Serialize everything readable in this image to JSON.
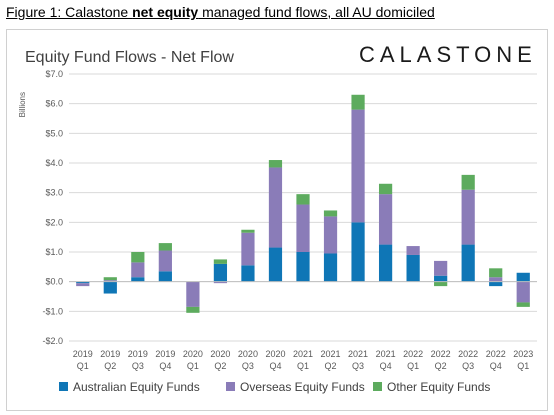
{
  "caption": {
    "prefix": "Figure 1: Calastone ",
    "bold": "net equity",
    "suffix": " managed fund flows, all AU domiciled"
  },
  "logo_text": "CALASTONE",
  "colors": {
    "australian": "#0f76b6",
    "overseas": "#8a7cb8",
    "other": "#5dab5e",
    "grid": "#d9d9d9"
  },
  "chart_data": {
    "type": "bar",
    "stacked": true,
    "title": "Equity Fund Flows - Net Flow",
    "ylabel": "Billions",
    "ylim": [
      -2.0,
      7.0
    ],
    "ytick_values": [
      7.0,
      6.0,
      5.0,
      4.0,
      3.0,
      2.0,
      1.0,
      0.0,
      -1.0,
      -2.0
    ],
    "ytick_labels": [
      "$7.0",
      "$6.0",
      "$5.0",
      "$4.0",
      "$3.0",
      "$2.0",
      "$1.0",
      "$0.0",
      "-$1.0",
      "-$2.0"
    ],
    "categories": [
      [
        "2019",
        "Q1"
      ],
      [
        "2019",
        "Q2"
      ],
      [
        "2019",
        "Q3"
      ],
      [
        "2019",
        "Q4"
      ],
      [
        "2020",
        "Q1"
      ],
      [
        "2020",
        "Q2"
      ],
      [
        "2020",
        "Q3"
      ],
      [
        "2020",
        "Q4"
      ],
      [
        "2021",
        "Q1"
      ],
      [
        "2021",
        "Q2"
      ],
      [
        "2021",
        "Q3"
      ],
      [
        "2021",
        "Q4"
      ],
      [
        "2022",
        "Q1"
      ],
      [
        "2022",
        "Q2"
      ],
      [
        "2022",
        "Q3"
      ],
      [
        "2022",
        "Q4"
      ],
      [
        "2023",
        "Q1"
      ]
    ],
    "series": [
      {
        "name": "Australian Equity Funds",
        "color": "#0f76b6",
        "values": [
          -0.05,
          -0.4,
          0.15,
          0.35,
          0.0,
          0.6,
          0.55,
          1.15,
          1.0,
          0.95,
          2.0,
          1.25,
          0.9,
          0.2,
          1.25,
          -0.15,
          0.3
        ]
      },
      {
        "name": "Overseas Equity Funds",
        "color": "#8a7cb8",
        "values": [
          -0.1,
          0.05,
          0.5,
          0.7,
          -0.85,
          -0.05,
          1.1,
          2.7,
          1.6,
          1.25,
          3.8,
          1.7,
          0.3,
          0.5,
          1.85,
          0.15,
          -0.7
        ]
      },
      {
        "name": "Other Equity Funds",
        "color": "#5dab5e",
        "values": [
          0.0,
          0.1,
          0.35,
          0.25,
          -0.2,
          0.15,
          0.1,
          0.25,
          0.35,
          0.2,
          0.5,
          0.35,
          0.0,
          -0.15,
          0.5,
          0.3,
          -0.15
        ]
      }
    ],
    "legend_position": "bottom",
    "grid": true
  }
}
